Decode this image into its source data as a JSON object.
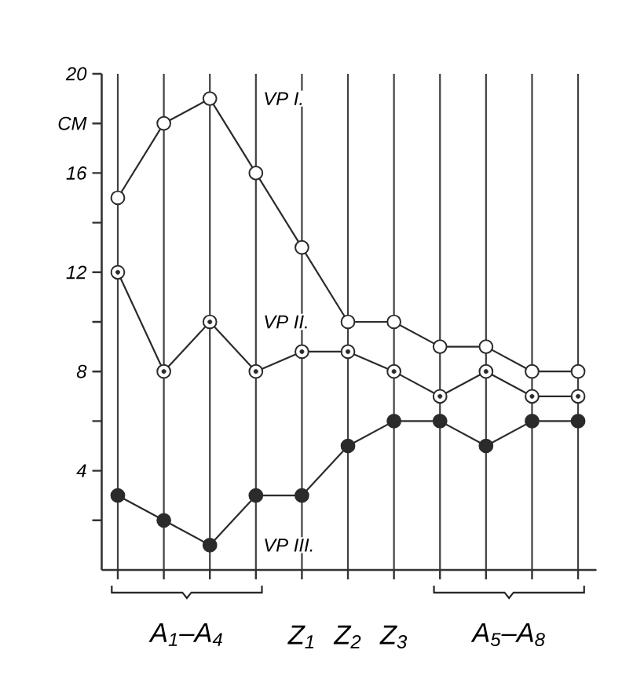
{
  "chart_data": {
    "type": "line",
    "ylabel": null,
    "categories": [
      null,
      null,
      null,
      null,
      "Z$_{1}$",
      "Z$_{2}$",
      "Z$_{3}$",
      null,
      null,
      null,
      null
    ],
    "series": [
      {
        "name": "VP I.",
        "color": "#2b2b2b",
        "values": [
          15,
          18,
          19,
          16,
          13,
          10,
          10,
          9,
          9,
          8,
          8
        ]
      },
      {
        "name": "VP II.",
        "color": "#2b2b2b",
        "values": [
          12,
          8,
          10,
          8,
          8.8,
          8.8,
          8,
          7,
          8,
          7,
          7
        ]
      },
      {
        "name": "VP III.",
        "color": "#2b2b2b",
        "values": [
          3,
          2,
          1,
          3,
          3,
          5,
          6,
          6,
          5,
          6,
          6
        ]
      }
    ],
    "ylim": [
      0,
      20
    ],
    "yticks": [
      {
        "value": 2,
        "label": null
      },
      4,
      {
        "value": 6,
        "label": null
      },
      8,
      {
        "value": 10,
        "label": null
      },
      12,
      {
        "value": 14,
        "label": null
      },
      16,
      {
        "value": 18,
        "label": "CM"
      },
      20
    ],
    "grid": "x",
    "marker": "circle",
    "line_style": "solid",
    "annotations": [
      "A$_{1}$–A$_{4}$",
      "A$_{5}$–A$_{8}$"
    ]
  }
}
